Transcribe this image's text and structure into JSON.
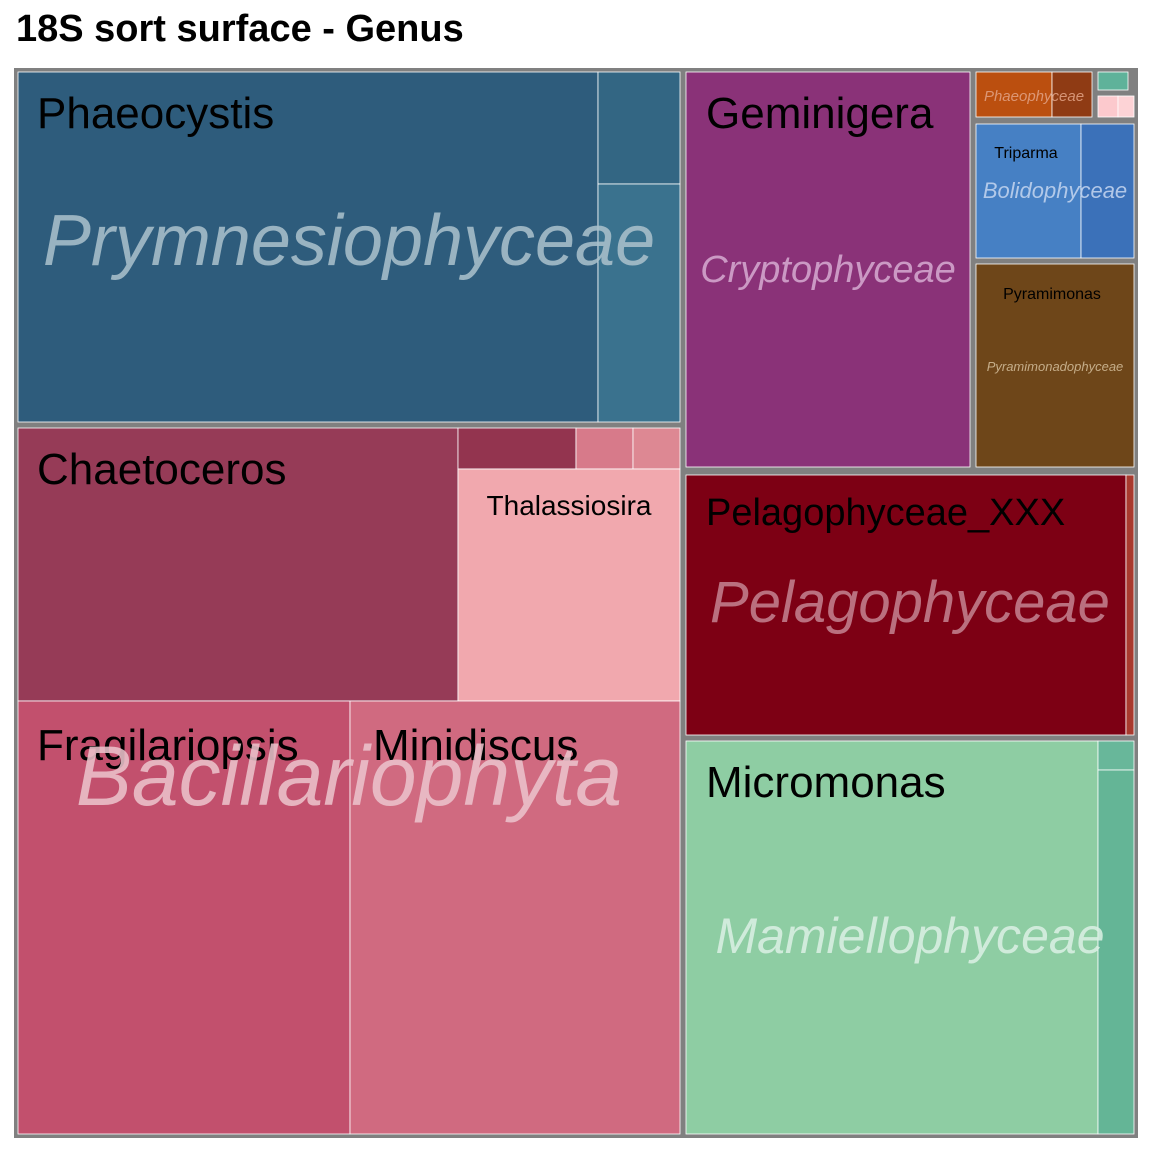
{
  "chart_data": {
    "type": "treemap",
    "title": "18S sort surface - Genus",
    "groups": [
      {
        "name": "Prymnesiophyceae",
        "label_color": "#a9bfcb",
        "cells": [
          {
            "genus": "Phaeocystis",
            "value": 20.4,
            "color": "#2e5c7c",
            "show_label": true
          },
          {
            "genus": "",
            "value": 1.3,
            "color": "#336683",
            "show_label": false
          },
          {
            "genus": "",
            "value": 2.3,
            "color": "#3a728e",
            "show_label": false
          }
        ]
      },
      {
        "name": "Bacillariophyta",
        "label_color": "#ebc1cb",
        "cells": [
          {
            "genus": "Chaetoceros",
            "value": 12.4,
            "color": "#963b57",
            "show_label": true
          },
          {
            "genus": "",
            "value": 0.4,
            "color": "#93344f",
            "show_label": false
          },
          {
            "genus": "",
            "value": 0.2,
            "color": "#d77a8a",
            "show_label": false
          },
          {
            "genus": "",
            "value": 0.2,
            "color": "#dd8893",
            "show_label": false
          },
          {
            "genus": "Thalassiosira",
            "value": 3.7,
            "color": "#f1a8ae",
            "show_label": true
          },
          {
            "genus": "Fragilariopsis",
            "value": 14.3,
            "color": "#c2506d",
            "show_label": true
          },
          {
            "genus": "Minidiscus",
            "value": 13.8,
            "color": "#d06a80",
            "show_label": true
          }
        ]
      },
      {
        "name": "Cryptophyceae",
        "label_color": "#d4a7ce",
        "cells": [
          {
            "genus": "Geminigera",
            "value": 10.3,
            "color": "#8a3278",
            "show_label": true
          }
        ]
      },
      {
        "name": "Phaeophyceae",
        "label_color": "#e0a183",
        "cells": [
          {
            "genus": "",
            "value": 0.25,
            "color": "#bb4f0f",
            "show_label": false
          },
          {
            "genus": "",
            "value": 0.12,
            "color": "#8f3b14",
            "show_label": false
          }
        ]
      },
      {
        "name": "",
        "label_color": "#ffffff",
        "cells": [
          {
            "genus": "",
            "value": 0.03,
            "color": "#5fb29a",
            "show_label": false
          },
          {
            "genus": "",
            "value": 0.04,
            "color": "#fcc9cd",
            "show_label": false
          },
          {
            "genus": "",
            "value": 0.02,
            "color": "#fdd3d6",
            "show_label": false
          }
        ]
      },
      {
        "name": "Bolidophyceae",
        "label_color": "#c1d3ee",
        "cells": [
          {
            "genus": "Triparma",
            "value": 1.0,
            "color": "#4680c4",
            "show_label": true
          },
          {
            "genus": "",
            "value": 0.5,
            "color": "#3b71b9",
            "show_label": false
          }
        ]
      },
      {
        "name": "Pyramimonadophyceae",
        "label_color": "#d2bc98",
        "cells": [
          {
            "genus": "Pyramimonas",
            "value": 1.9,
            "color": "#6e4619",
            "show_label": true
          }
        ]
      },
      {
        "name": "Pelagophyceae",
        "label_color": "#c3808e",
        "cells": [
          {
            "genus": "Pelagophyceae_XXX",
            "value": 8.4,
            "color": "#7d0014",
            "show_label": true
          },
          {
            "genus": "",
            "value": 0.08,
            "color": "#a83a2e",
            "show_label": false
          }
        ]
      },
      {
        "name": "Mamiellophyceae",
        "label_color": "#d9efe3",
        "cells": [
          {
            "genus": "Micromonas",
            "value": 13.0,
            "color": "#8ecda3",
            "show_label": true
          },
          {
            "genus": "",
            "value": 0.08,
            "color": "#68b79a",
            "show_label": false
          },
          {
            "genus": "",
            "value": 1.0,
            "color": "#64b596",
            "show_label": false
          }
        ]
      }
    ],
    "border_color": "#808080"
  }
}
